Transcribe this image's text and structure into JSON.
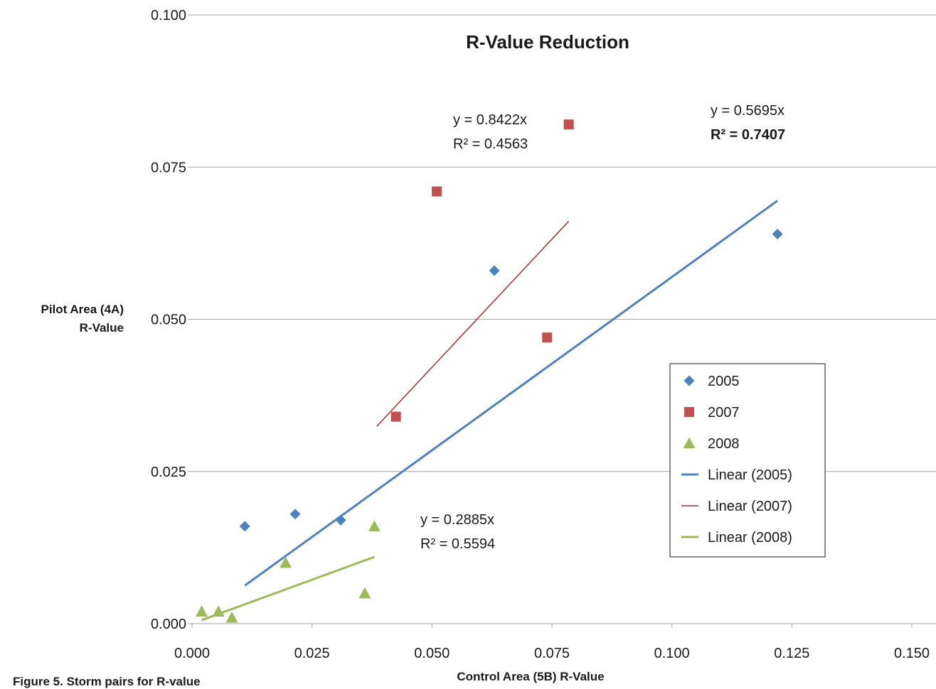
{
  "caption": "Figure 5. Storm pairs for R-value",
  "chart_data": {
    "type": "scatter",
    "title": "R-Value Reduction",
    "xlabel": "Control Area (5B) R-Value",
    "ylabel": [
      "Pilot Area (4A)",
      "R-Value"
    ],
    "xlim": [
      0,
      0.15
    ],
    "ylim": [
      0,
      0.1
    ],
    "xticks": [
      "0.000",
      "0.025",
      "0.050",
      "0.075",
      "0.100",
      "0.125",
      "0.150"
    ],
    "yticks": [
      "0.000",
      "0.025",
      "0.050",
      "0.075",
      "0.100"
    ],
    "grid": "horizontal",
    "legend_position": "right",
    "series": [
      {
        "name": "2005",
        "marker": "diamond",
        "color": "#4f81bd",
        "points": [
          [
            0.011,
            0.016
          ],
          [
            0.0215,
            0.018
          ],
          [
            0.031,
            0.017
          ],
          [
            0.063,
            0.058
          ],
          [
            0.122,
            0.064
          ]
        ]
      },
      {
        "name": "2007",
        "marker": "square",
        "color": "#c0504d",
        "points": [
          [
            0.0425,
            0.034
          ],
          [
            0.051,
            0.071
          ],
          [
            0.074,
            0.047
          ],
          [
            0.0785,
            0.082
          ]
        ]
      },
      {
        "name": "2008",
        "marker": "triangle",
        "color": "#9bbb59",
        "points": [
          [
            0.002,
            0.002
          ],
          [
            0.0055,
            0.002
          ],
          [
            0.0083,
            0.001
          ],
          [
            0.0195,
            0.01
          ],
          [
            0.036,
            0.005
          ],
          [
            0.038,
            0.016
          ]
        ]
      }
    ],
    "trendlines": [
      {
        "name": "Linear (2005)",
        "color": "#4f81bd",
        "width": 3,
        "slope": 0.5695,
        "x_range": [
          0.011,
          0.122
        ],
        "equation": "y = 0.5695x",
        "r2": "R² = 0.7407"
      },
      {
        "name": "Linear (2007)",
        "color": "#a0302c",
        "width": 1.5,
        "slope": 0.8422,
        "x_range": [
          0.0385,
          0.0785
        ],
        "equation": "y = 0.8422x",
        "r2": "R² = 0.4563"
      },
      {
        "name": "Linear (2008)",
        "color": "#9bbb59",
        "width": 3,
        "slope": 0.2885,
        "x_range": [
          0.002,
          0.038
        ],
        "equation": "y = 0.2885x",
        "r2": "R² = 0.5594"
      }
    ]
  }
}
